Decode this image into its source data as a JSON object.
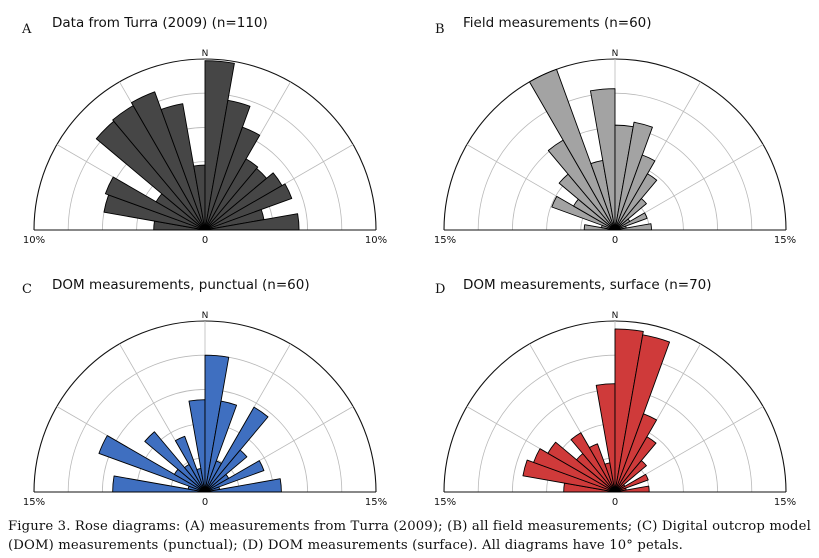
{
  "caption": "Figure 3. Rose diagrams: (A) measurements from Turra (2009); (B) all field measurements; (C) Digital outcrop model (DOM) measurements (punctual); (D) DOM measurements (surface). All diagrams have 10° petals.",
  "chart_data": [
    {
      "type": "rose",
      "panel": "A",
      "title": "Data from Turra (2009) (n=110)",
      "direction_label": "N",
      "tick_labels": {
        "left": "10%",
        "center": "0",
        "right": "10%"
      },
      "rmax_percent": 10,
      "petal_width_deg": 10,
      "color": "#464646",
      "petals": [
        {
          "azimuth_from_deg": -90,
          "azimuth_to_deg": -80,
          "percent": 3.0
        },
        {
          "azimuth_from_deg": -80,
          "azimuth_to_deg": -70,
          "percent": 6.0
        },
        {
          "azimuth_from_deg": -70,
          "azimuth_to_deg": -60,
          "percent": 6.2
        },
        {
          "azimuth_from_deg": -60,
          "azimuth_to_deg": -50,
          "percent": 3.3
        },
        {
          "azimuth_from_deg": -50,
          "azimuth_to_deg": -40,
          "percent": 8.3
        },
        {
          "azimuth_from_deg": -40,
          "azimuth_to_deg": -30,
          "percent": 8.4
        },
        {
          "azimuth_from_deg": -30,
          "azimuth_to_deg": -20,
          "percent": 8.6
        },
        {
          "azimuth_from_deg": -20,
          "azimuth_to_deg": -10,
          "percent": 7.5
        },
        {
          "azimuth_from_deg": -10,
          "azimuth_to_deg": 0,
          "percent": 3.8
        },
        {
          "azimuth_from_deg": 0,
          "azimuth_to_deg": 10,
          "percent": 9.9
        },
        {
          "azimuth_from_deg": 10,
          "azimuth_to_deg": 20,
          "percent": 7.7
        },
        {
          "azimuth_from_deg": 20,
          "azimuth_to_deg": 30,
          "percent": 6.4
        },
        {
          "azimuth_from_deg": 30,
          "azimuth_to_deg": 40,
          "percent": 4.8
        },
        {
          "azimuth_from_deg": 40,
          "azimuth_to_deg": 50,
          "percent": 4.7
        },
        {
          "azimuth_from_deg": 50,
          "azimuth_to_deg": 60,
          "percent": 5.2
        },
        {
          "azimuth_from_deg": 60,
          "azimuth_to_deg": 70,
          "percent": 5.4
        },
        {
          "azimuth_from_deg": 70,
          "azimuth_to_deg": 80,
          "percent": 3.5
        },
        {
          "azimuth_from_deg": 80,
          "azimuth_to_deg": 90,
          "percent": 5.5
        }
      ]
    },
    {
      "type": "rose",
      "panel": "B",
      "title": "Field measurements (n=60)",
      "direction_label": "N",
      "tick_labels": {
        "left": "15%",
        "center": "0",
        "right": "15%"
      },
      "rmax_percent": 15,
      "petal_width_deg": 10,
      "color": "#a3a3a3",
      "petals": [
        {
          "azimuth_from_deg": -90,
          "azimuth_to_deg": -80,
          "percent": 2.7
        },
        {
          "azimuth_from_deg": -80,
          "azimuth_to_deg": -70,
          "percent": 1.2
        },
        {
          "azimuth_from_deg": -70,
          "azimuth_to_deg": -60,
          "percent": 5.9
        },
        {
          "azimuth_from_deg": -60,
          "azimuth_to_deg": -50,
          "percent": 4.2
        },
        {
          "azimuth_from_deg": -50,
          "azimuth_to_deg": -40,
          "percent": 6.4
        },
        {
          "azimuth_from_deg": -40,
          "azimuth_to_deg": -30,
          "percent": 9.1
        },
        {
          "azimuth_from_deg": -30,
          "azimuth_to_deg": -20,
          "percent": 15.0
        },
        {
          "azimuth_from_deg": -20,
          "azimuth_to_deg": -10,
          "percent": 6.2
        },
        {
          "azimuth_from_deg": -10,
          "azimuth_to_deg": 0,
          "percent": 12.4
        },
        {
          "azimuth_from_deg": 0,
          "azimuth_to_deg": 10,
          "percent": 9.2
        },
        {
          "azimuth_from_deg": 10,
          "azimuth_to_deg": 20,
          "percent": 9.6
        },
        {
          "azimuth_from_deg": 20,
          "azimuth_to_deg": 30,
          "percent": 7.0
        },
        {
          "azimuth_from_deg": 30,
          "azimuth_to_deg": 40,
          "percent": 5.7
        },
        {
          "azimuth_from_deg": 40,
          "azimuth_to_deg": 50,
          "percent": 3.6
        },
        {
          "azimuth_from_deg": 50,
          "azimuth_to_deg": 60,
          "percent": 1.5
        },
        {
          "azimuth_from_deg": 60,
          "azimuth_to_deg": 70,
          "percent": 3.0
        },
        {
          "azimuth_from_deg": 70,
          "azimuth_to_deg": 80,
          "percent": 1.0
        },
        {
          "azimuth_from_deg": 80,
          "azimuth_to_deg": 90,
          "percent": 3.2
        }
      ]
    },
    {
      "type": "rose",
      "panel": "C",
      "title": "DOM measurements, punctual  (n=60)",
      "direction_label": "N",
      "tick_labels": {
        "left": "15%",
        "center": "0",
        "right": "15%"
      },
      "rmax_percent": 15,
      "petal_width_deg": 10,
      "color": "#3f6fc0",
      "petals": [
        {
          "azimuth_from_deg": -90,
          "azimuth_to_deg": -80,
          "percent": 8.1
        },
        {
          "azimuth_from_deg": -80,
          "azimuth_to_deg": -70,
          "percent": 1.5
        },
        {
          "azimuth_from_deg": -70,
          "azimuth_to_deg": -60,
          "percent": 9.9
        },
        {
          "azimuth_from_deg": -60,
          "azimuth_to_deg": -50,
          "percent": 3.1
        },
        {
          "azimuth_from_deg": -50,
          "azimuth_to_deg": -40,
          "percent": 6.9
        },
        {
          "azimuth_from_deg": -40,
          "azimuth_to_deg": -30,
          "percent": 2.8
        },
        {
          "azimuth_from_deg": -30,
          "azimuth_to_deg": -20,
          "percent": 5.2
        },
        {
          "azimuth_from_deg": -20,
          "azimuth_to_deg": -10,
          "percent": 2.1
        },
        {
          "azimuth_from_deg": -10,
          "azimuth_to_deg": 0,
          "percent": 8.1
        },
        {
          "azimuth_from_deg": 0,
          "azimuth_to_deg": 10,
          "percent": 12.0
        },
        {
          "azimuth_from_deg": 10,
          "azimuth_to_deg": 20,
          "percent": 8.1
        },
        {
          "azimuth_from_deg": 20,
          "azimuth_to_deg": 30,
          "percent": 2.9
        },
        {
          "azimuth_from_deg": 30,
          "azimuth_to_deg": 40,
          "percent": 8.6
        },
        {
          "azimuth_from_deg": 40,
          "azimuth_to_deg": 50,
          "percent": 4.8
        },
        {
          "azimuth_from_deg": 50,
          "azimuth_to_deg": 60,
          "percent": 2.4
        },
        {
          "azimuth_from_deg": 60,
          "azimuth_to_deg": 70,
          "percent": 5.5
        },
        {
          "azimuth_from_deg": 70,
          "azimuth_to_deg": 80,
          "percent": 1.3
        },
        {
          "azimuth_from_deg": 80,
          "azimuth_to_deg": 90,
          "percent": 6.7
        }
      ]
    },
    {
      "type": "rose",
      "panel": "D",
      "title": "DOM measurements, surface  (n=70)",
      "direction_label": "N",
      "tick_labels": {
        "left": "15%",
        "center": "0",
        "right": "15%"
      },
      "rmax_percent": 15,
      "petal_width_deg": 10,
      "color": "#cf3a3a",
      "petals": [
        {
          "azimuth_from_deg": -90,
          "azimuth_to_deg": -80,
          "percent": 4.5
        },
        {
          "azimuth_from_deg": -80,
          "azimuth_to_deg": -70,
          "percent": 8.2
        },
        {
          "azimuth_from_deg": -70,
          "azimuth_to_deg": -60,
          "percent": 7.6
        },
        {
          "azimuth_from_deg": -60,
          "azimuth_to_deg": -50,
          "percent": 6.8
        },
        {
          "azimuth_from_deg": -50,
          "azimuth_to_deg": -40,
          "percent": 4.4
        },
        {
          "azimuth_from_deg": -40,
          "azimuth_to_deg": -30,
          "percent": 6.0
        },
        {
          "azimuth_from_deg": -30,
          "azimuth_to_deg": -20,
          "percent": 4.5
        },
        {
          "azimuth_from_deg": -20,
          "azimuth_to_deg": -10,
          "percent": 2.6
        },
        {
          "azimuth_from_deg": -10,
          "azimuth_to_deg": 0,
          "percent": 9.5
        },
        {
          "azimuth_from_deg": 0,
          "azimuth_to_deg": 10,
          "percent": 14.3
        },
        {
          "azimuth_from_deg": 10,
          "azimuth_to_deg": 20,
          "percent": 14.0
        },
        {
          "azimuth_from_deg": 20,
          "azimuth_to_deg": 30,
          "percent": 7.3
        },
        {
          "azimuth_from_deg": 30,
          "azimuth_to_deg": 40,
          "percent": 5.6
        },
        {
          "azimuth_from_deg": 40,
          "azimuth_to_deg": 50,
          "percent": 3.6
        },
        {
          "azimuth_from_deg": 50,
          "azimuth_to_deg": 60,
          "percent": 1.0
        },
        {
          "azimuth_from_deg": 60,
          "azimuth_to_deg": 70,
          "percent": 3.1
        },
        {
          "azimuth_from_deg": 70,
          "azimuth_to_deg": 80,
          "percent": 1.0
        },
        {
          "azimuth_from_deg": 80,
          "azimuth_to_deg": 90,
          "percent": 3.0
        }
      ]
    }
  ]
}
